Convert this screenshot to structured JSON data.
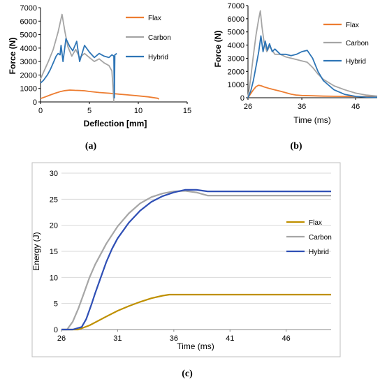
{
  "captions": {
    "a": "(a)",
    "b": "(b)",
    "c": "(c)"
  },
  "colors": {
    "flax": "#ED7D31",
    "carbon": "#A5A5A5",
    "hybrid": "#2E75B6",
    "flax_c": "#BF9000",
    "carbon_c": "#A6A6A6",
    "hybrid_c": "#2F4FB5",
    "axis": "#000000",
    "frame": "#BFBFBF",
    "grid": "#D9D9D9"
  },
  "chart_data": [
    {
      "id": "a",
      "type": "line",
      "title": "",
      "xlabel": "Deflection [mm]",
      "ylabel": "Force  (N)",
      "xlim": [
        0,
        15
      ],
      "ylim": [
        0,
        7000
      ],
      "xticks": [
        "0",
        "5",
        "10",
        "15"
      ],
      "yticks": [
        "0",
        "1000",
        "2000",
        "3000",
        "4000",
        "5000",
        "6000",
        "7000"
      ],
      "grid": false,
      "legend": "right",
      "series": [
        {
          "name": "Flax",
          "x": [
            0,
            0.5,
            1,
            1.5,
            2,
            2.5,
            3,
            3.5,
            4,
            4.5,
            5,
            6,
            7,
            8,
            9,
            10,
            11,
            12,
            12.1
          ],
          "y": [
            250,
            380,
            520,
            650,
            760,
            840,
            880,
            860,
            850,
            830,
            780,
            700,
            650,
            580,
            520,
            450,
            380,
            270,
            200
          ]
        },
        {
          "name": "Carbon",
          "x": [
            0,
            0.3,
            0.8,
            1.3,
            1.8,
            2.2,
            2.5,
            2.8,
            3.2,
            3.6,
            4,
            4.5,
            5,
            5.5,
            6,
            6.5,
            7,
            7.3,
            7.4,
            7.5
          ],
          "y": [
            1700,
            2200,
            3000,
            3900,
            5200,
            6500,
            5200,
            4100,
            3400,
            3900,
            3300,
            3600,
            3300,
            3000,
            3200,
            2900,
            2700,
            2300,
            1200,
            0
          ]
        },
        {
          "name": "Hybrid",
          "x": [
            0,
            0.3,
            0.7,
            1,
            1.3,
            1.6,
            1.8,
            2,
            2.1,
            2.3,
            2.6,
            3,
            3.3,
            3.7,
            4,
            4.5,
            5,
            5.5,
            6,
            6.5,
            7,
            7.3,
            7.5,
            7.55,
            7.6,
            7.8
          ],
          "y": [
            1400,
            1600,
            2000,
            2400,
            2900,
            3400,
            3600,
            3500,
            4200,
            3000,
            4700,
            4100,
            3800,
            4500,
            3000,
            4200,
            3700,
            3300,
            3600,
            3400,
            3300,
            3500,
            3400,
            300,
            3500,
            3600
          ]
        }
      ]
    },
    {
      "id": "b",
      "type": "line",
      "title": "",
      "xlabel": "Time (ms)",
      "ylabel": "Force  (N)",
      "xlim": [
        26,
        50
      ],
      "ylim": [
        0,
        7000
      ],
      "xticks": [
        "26",
        "36",
        "46"
      ],
      "xtick_values": [
        26,
        36,
        46
      ],
      "yticks": [
        "0",
        "1000",
        "2000",
        "3000",
        "4000",
        "5000",
        "6000",
        "7000"
      ],
      "grid": false,
      "legend": "right",
      "series": [
        {
          "name": "Flax",
          "x": [
            26,
            26.5,
            27,
            27.5,
            28,
            28.5,
            29,
            30,
            31,
            32,
            33,
            34,
            35,
            36,
            38,
            40,
            44,
            50
          ],
          "y": [
            0,
            300,
            600,
            850,
            950,
            900,
            820,
            700,
            600,
            500,
            380,
            270,
            200,
            170,
            150,
            120,
            100,
            80
          ]
        },
        {
          "name": "Carbon",
          "x": [
            26,
            26.5,
            27,
            27.5,
            28,
            28.3,
            28.6,
            29,
            29.5,
            30,
            31,
            32,
            33,
            34,
            35,
            36,
            37,
            38,
            39,
            40,
            42,
            44,
            46,
            48,
            50
          ],
          "y": [
            0,
            1500,
            3200,
            4800,
            6000,
            6600,
            5400,
            4200,
            3500,
            3900,
            3300,
            3300,
            3100,
            3000,
            2900,
            2800,
            2700,
            2300,
            1800,
            1400,
            900,
            600,
            350,
            200,
            120
          ]
        },
        {
          "name": "Hybrid",
          "x": [
            26,
            26.5,
            27,
            27.5,
            28,
            28.4,
            28.8,
            29.2,
            29.6,
            30,
            30.5,
            31,
            32,
            33,
            34,
            35,
            36,
            37,
            38,
            39,
            40,
            42,
            44,
            46,
            48,
            50
          ],
          "y": [
            0,
            500,
            1300,
            2400,
            3500,
            4700,
            3500,
            4300,
            3600,
            4100,
            3500,
            3700,
            3300,
            3300,
            3200,
            3300,
            3500,
            3600,
            3000,
            2000,
            1300,
            600,
            250,
            100,
            50,
            30
          ]
        }
      ]
    },
    {
      "id": "c",
      "type": "line",
      "title": "",
      "xlabel": "Time (ms)",
      "ylabel": "Energy (J)",
      "xlim": [
        26,
        50
      ],
      "ylim": [
        0,
        30
      ],
      "xticks": [
        "26",
        "31",
        "36",
        "41",
        "46"
      ],
      "xtick_values": [
        26,
        31,
        36,
        41,
        46
      ],
      "yticks": [
        "0",
        "5",
        "10",
        "15",
        "20",
        "25",
        "30"
      ],
      "grid": true,
      "legend": "right",
      "series": [
        {
          "name": "Flax",
          "x": [
            26,
            27.5,
            28.5,
            30,
            31,
            32,
            33,
            34,
            35,
            35.6,
            50
          ],
          "y": [
            0,
            0,
            0.8,
            2.5,
            3.6,
            4.5,
            5.3,
            6.0,
            6.5,
            6.7,
            6.7
          ]
        },
        {
          "name": "Carbon",
          "x": [
            26,
            26.5,
            27,
            27.5,
            28,
            28.5,
            29,
            30,
            31,
            32,
            33,
            34,
            35,
            36,
            37,
            38,
            39,
            40,
            50
          ],
          "y": [
            0,
            0,
            1.5,
            4,
            7,
            10,
            12.5,
            16.5,
            19.8,
            22.3,
            24.2,
            25.4,
            26.1,
            26.5,
            26.6,
            26.3,
            25.7,
            25.7,
            25.7
          ]
        },
        {
          "name": "Hybrid",
          "x": [
            26,
            27,
            27.8,
            28.2,
            28.7,
            29,
            29.5,
            30,
            30.5,
            31,
            32,
            33,
            34,
            35,
            36,
            37,
            38,
            39,
            50
          ],
          "y": [
            0,
            0,
            0.5,
            2,
            5,
            7,
            10,
            13,
            15.5,
            17.5,
            20.5,
            22.8,
            24.5,
            25.6,
            26.3,
            26.8,
            26.8,
            26.5,
            26.5
          ]
        }
      ]
    }
  ]
}
